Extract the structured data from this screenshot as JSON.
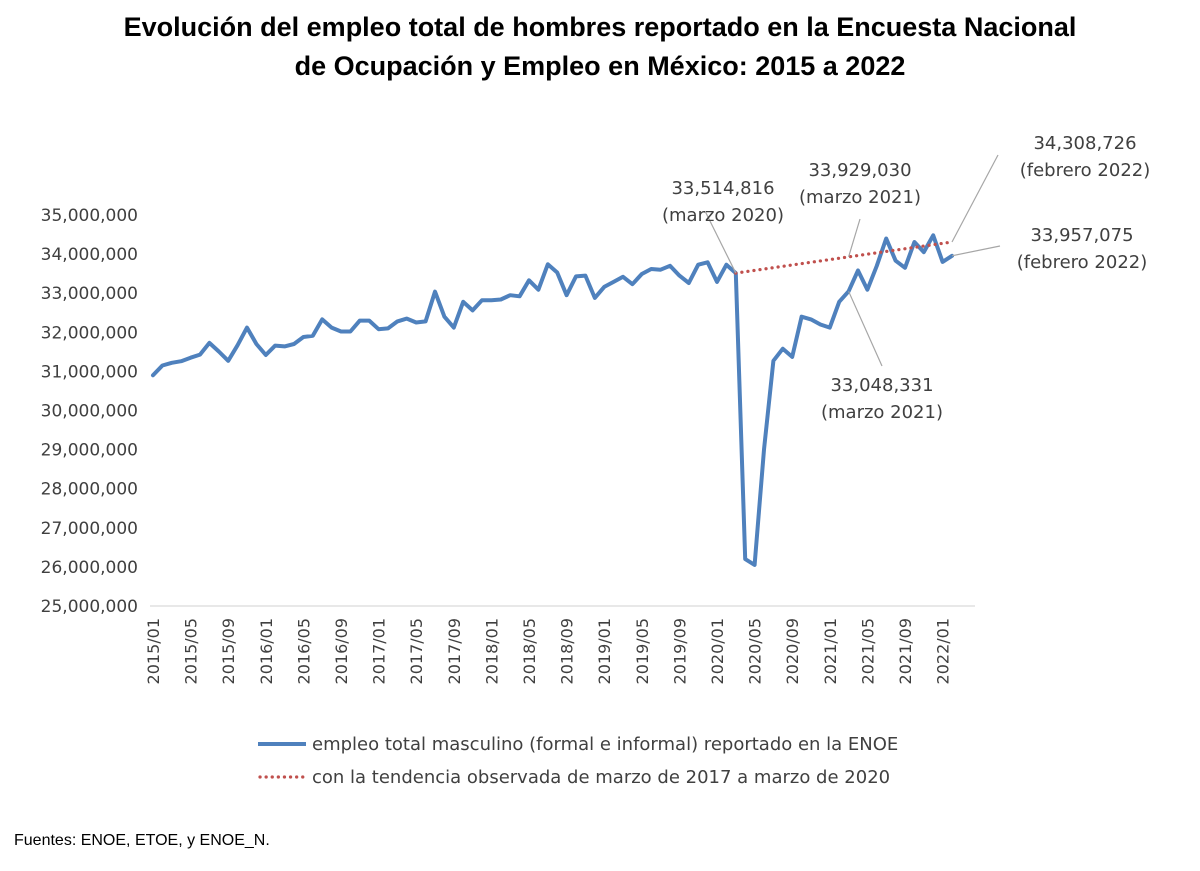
{
  "title_lines": [
    "Evolución del empleo total de hombres reportado en la Encuesta Nacional",
    "de Ocupación y Empleo en México: 2015 a 2022"
  ],
  "source_note": "Fuentes: ENOE, ETOE, y ENOE_N.",
  "colors": {
    "series_main": "#4f81bd",
    "series_trend": "#c0504d",
    "axis": "#d9d9d9",
    "leader": "#a6a6a6"
  },
  "chart_data": {
    "type": "line",
    "title": "Evolución del empleo total de hombres reportado en la Encuesta Nacional de Ocupación y Empleo en México: 2015 a 2022",
    "xlabel": "",
    "ylabel": "",
    "ylim": [
      25000000,
      35000000
    ],
    "y_ticks": [
      25000000,
      26000000,
      27000000,
      28000000,
      29000000,
      30000000,
      31000000,
      32000000,
      33000000,
      34000000,
      35000000
    ],
    "y_tick_labels": [
      "25,000,000",
      "26,000,000",
      "27,000,000",
      "28,000,000",
      "29,000,000",
      "30,000,000",
      "31,000,000",
      "32,000,000",
      "33,000,000",
      "34,000,000",
      "35,000,000"
    ],
    "x_tick_labels": [
      "2015/01",
      "2015/05",
      "2015/09",
      "2016/01",
      "2016/05",
      "2016/09",
      "2017/01",
      "2017/05",
      "2017/09",
      "2018/01",
      "2018/05",
      "2018/09",
      "2019/01",
      "2019/05",
      "2019/09",
      "2020/01",
      "2020/05",
      "2020/09",
      "2021/01",
      "2021/05",
      "2021/09",
      "2022/01"
    ],
    "grid": false,
    "legend_position": "bottom",
    "series": [
      {
        "name": "empleo total masculino (formal e informal) reportado en la ENOE",
        "start": "2015/01",
        "frequency": "monthly",
        "values": [
          30900000,
          31150000,
          31220000,
          31260000,
          31350000,
          31430000,
          31730000,
          31510000,
          31270000,
          31670000,
          32120000,
          31700000,
          31420000,
          31660000,
          31640000,
          31700000,
          31880000,
          31910000,
          32330000,
          32120000,
          32020000,
          32020000,
          32300000,
          32300000,
          32080000,
          32100000,
          32280000,
          32350000,
          32250000,
          32280000,
          33040000,
          32400000,
          32120000,
          32780000,
          32560000,
          32820000,
          32820000,
          32840000,
          32950000,
          32920000,
          33330000,
          33090000,
          33740000,
          33530000,
          32950000,
          33430000,
          33450000,
          32880000,
          33160000,
          33290000,
          33420000,
          33230000,
          33490000,
          33620000,
          33600000,
          33700000,
          33450000,
          33260000,
          33730000,
          33790000,
          33290000,
          33730000,
          33514816,
          26200000,
          26050000,
          29000000,
          31270000,
          31580000,
          31370000,
          32400000,
          32330000,
          32200000,
          32120000,
          32780000,
          33048331,
          33580000,
          33090000,
          33700000,
          34400000,
          33830000,
          33650000,
          34310000,
          34050000,
          34480000,
          33800000,
          33957075
        ]
      },
      {
        "name": "con la tendencia observada de marzo de 2017 a marzo de 2020",
        "start": "2020/03",
        "frequency": "monthly",
        "style": "dotted",
        "values": [
          33514816,
          34308726
        ]
      }
    ],
    "annotations": [
      {
        "label_lines": [
          "33,514,816",
          "(marzo 2020)"
        ],
        "point": "2020/03",
        "value": 33514816,
        "series": "empleo total masculino (formal e informal) reportado en la ENOE"
      },
      {
        "label_lines": [
          "33,929,030",
          "(marzo 2021)"
        ],
        "point": "2021/03",
        "value": 33929030,
        "series": "con la tendencia observada de marzo de 2017 a marzo de 2020"
      },
      {
        "label_lines": [
          "34,308,726",
          "(febrero 2022)"
        ],
        "point": "2022/02",
        "value": 34308726,
        "series": "con la tendencia observada de marzo de 2017 a marzo de 2020"
      },
      {
        "label_lines": [
          "33,957,075",
          "(febrero 2022)"
        ],
        "point": "2022/02",
        "value": 33957075,
        "series": "empleo total masculino (formal e informal) reportado en la ENOE"
      },
      {
        "label_lines": [
          "33,048,331",
          "(marzo 2021)"
        ],
        "point": "2021/03",
        "value": 33048331,
        "series": "empleo total masculino (formal e informal) reportado en la ENOE"
      }
    ]
  }
}
